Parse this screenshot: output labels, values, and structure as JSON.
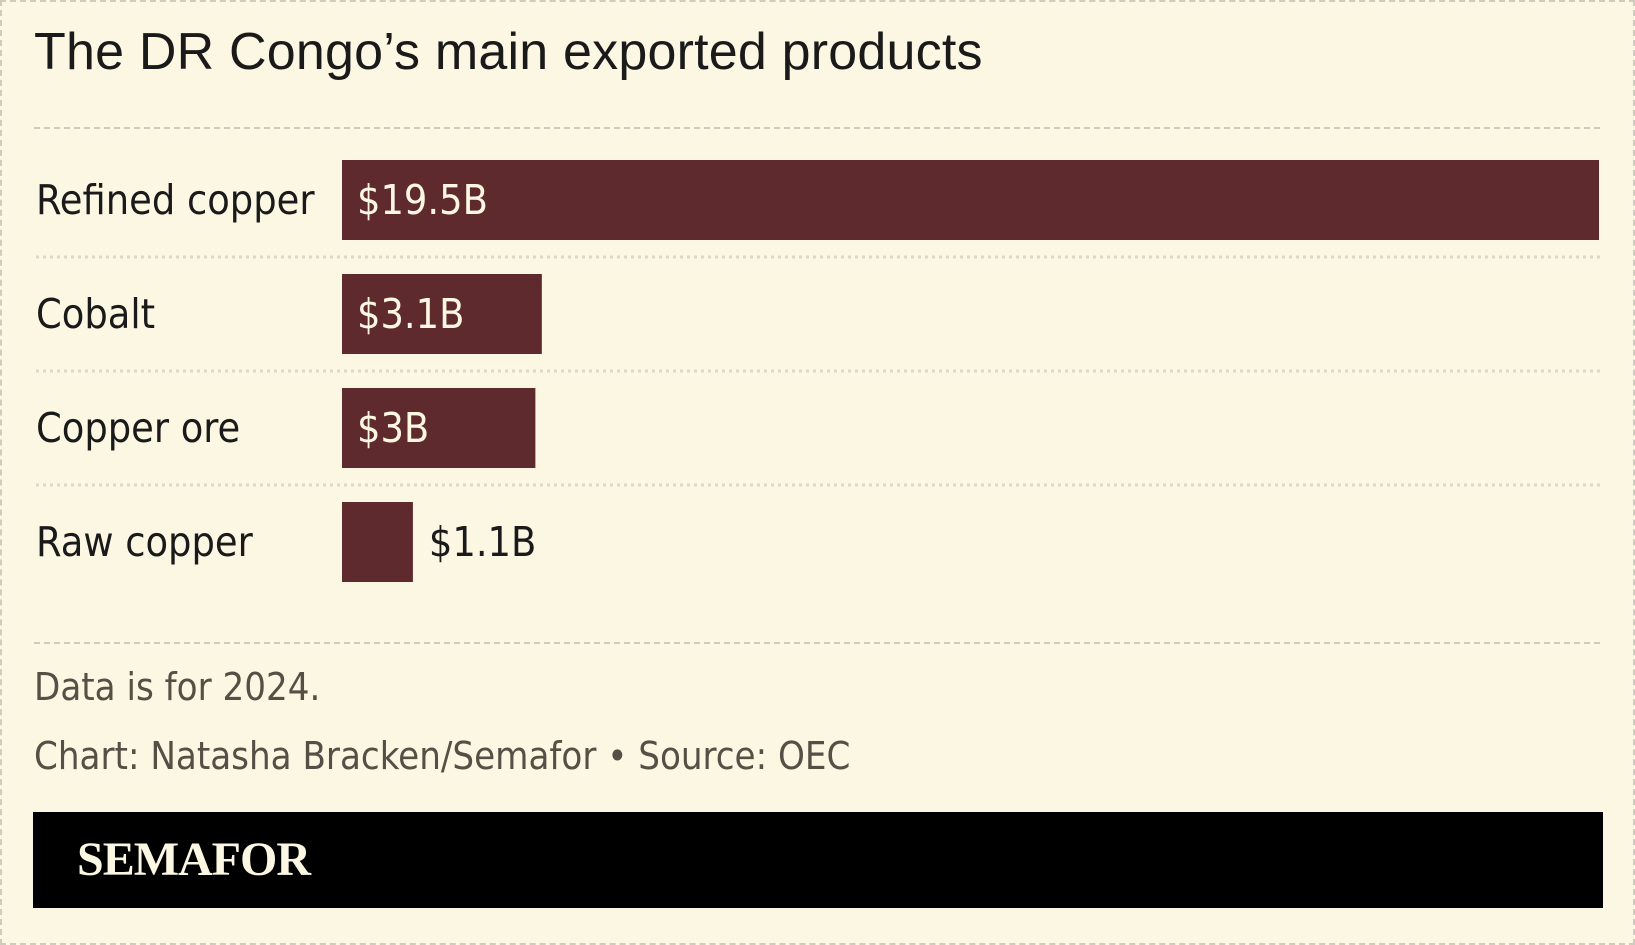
{
  "title": "The DR Congo’s main exported products",
  "chart_data": {
    "type": "bar",
    "orientation": "horizontal",
    "categories": [
      "Refined copper",
      "Cobalt",
      "Copper ore",
      "Raw copper"
    ],
    "values": [
      19.5,
      3.1,
      3.0,
      1.1
    ],
    "value_labels": [
      "$19.5B",
      "$3.1B",
      "$3B",
      "$1.1B"
    ],
    "unit": "$B",
    "xlim": [
      0,
      19.5
    ],
    "grid": false,
    "bar_color": "#5e2a2d"
  },
  "notes": {
    "data_note": "Data is for 2024.",
    "credit": "Chart: Natasha Bracken/Semafor • Source: OEC"
  },
  "footer": {
    "logo": "SEMAFOR"
  },
  "colors": {
    "background": "#fbf7e3",
    "bar": "#5e2a2d",
    "footer": "#000000"
  }
}
